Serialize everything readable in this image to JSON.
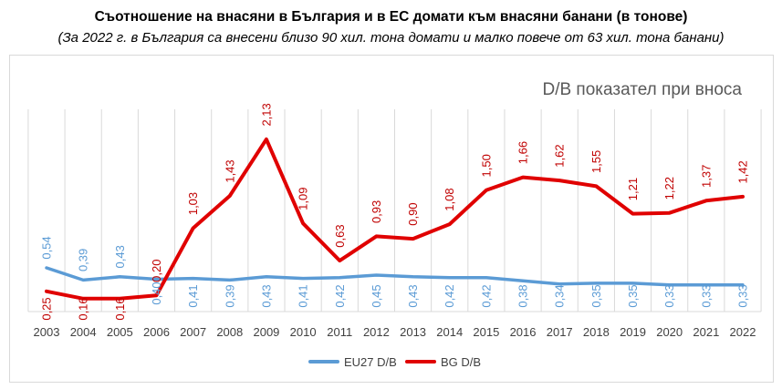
{
  "chart_data": {
    "type": "line",
    "title": "Съотношение на внасяни в България и в ЕС домати към внасяни банани (в тонове)",
    "subtitle": "(За 2022 г. в България са внесени близо 90 хил. тона домати и малко повече от 63 хил. тона банани)",
    "inner_title": "D/B показател при вноса",
    "categories": [
      "2003",
      "2004",
      "2005",
      "2006",
      "2007",
      "2008",
      "2009",
      "2010",
      "2011",
      "2012",
      "2013",
      "2014",
      "2015",
      "2016",
      "2017",
      "2018",
      "2019",
      "2020",
      "2021",
      "2022"
    ],
    "series": [
      {
        "name": "EU27 D/B",
        "color": "#5b9bd5",
        "values": [
          0.54,
          0.39,
          0.43,
          0.4,
          0.41,
          0.39,
          0.43,
          0.41,
          0.42,
          0.45,
          0.43,
          0.42,
          0.42,
          0.38,
          0.34,
          0.35,
          0.35,
          0.33,
          0.33,
          0.33
        ],
        "labels": [
          "0,54",
          "0,39",
          "0,43",
          "0,40",
          "0,41",
          "0,39",
          "0,43",
          "0,41",
          "0,42",
          "0,45",
          "0,43",
          "0,42",
          "0,42",
          "0,38",
          "0,34",
          "0,35",
          "0,35",
          "0,33",
          "0,33",
          "0,33"
        ]
      },
      {
        "name": "BG D/B",
        "color": "#e00000",
        "values": [
          0.25,
          0.16,
          0.16,
          0.2,
          1.03,
          1.43,
          2.13,
          1.09,
          0.63,
          0.93,
          0.9,
          1.08,
          1.5,
          1.66,
          1.62,
          1.55,
          1.21,
          1.22,
          1.37,
          1.42
        ],
        "labels": [
          "0,25",
          "0,16",
          "0,16",
          "0,20",
          "1,03",
          "1,43",
          "2,13",
          "1,09",
          "0,63",
          "0,93",
          "0,90",
          "1,08",
          "1,50",
          "1,66",
          "1,62",
          "1,55",
          "1,21",
          "1,22",
          "1,37",
          "1,42"
        ]
      }
    ],
    "ylim": [
      0,
      2.5
    ],
    "grid": "vertical",
    "legend": "bottom-center"
  }
}
